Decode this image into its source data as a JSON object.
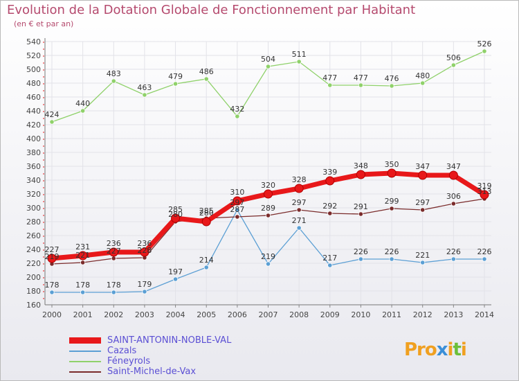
{
  "title": "Evolution de la Dotation Globale de Fonctionnement par Habitant",
  "subtitle": "(en € et par an)",
  "logo": {
    "parts": [
      "Pro",
      "x",
      "i",
      "t",
      "i"
    ]
  },
  "colors": {
    "title": "#b54a6e",
    "legend_text": "#5b4fd4",
    "axis_text": "#444444",
    "grid": "#e2e2e8"
  },
  "chart_data": {
    "type": "line",
    "title": "Evolution de la Dotation Globale de Fonctionnement par Habitant",
    "subtitle": "(en € et par an)",
    "xlabel": "",
    "ylabel": "",
    "x": [
      "2000",
      "2001",
      "2002",
      "2003",
      "2004",
      "2005",
      "2006",
      "2007",
      "2008",
      "2009",
      "2010",
      "2011",
      "2012",
      "2013",
      "2014"
    ],
    "ylim": [
      160,
      540
    ],
    "yticks": [
      160,
      180,
      200,
      220,
      240,
      260,
      280,
      300,
      320,
      340,
      360,
      380,
      400,
      420,
      440,
      460,
      480,
      500,
      520,
      540
    ],
    "grid": true,
    "legend_position": "bottom-left",
    "series": [
      {
        "name": "SAINT-ANTONIN-NOBLE-VAL",
        "color": "#e8181a",
        "width": 7,
        "values": [
          227,
          231,
          236,
          236,
          285,
          280,
          310,
          320,
          328,
          339,
          348,
          350,
          347,
          347,
          319
        ]
      },
      {
        "name": "Cazals",
        "color": "#5b9fd4",
        "width": 1.3,
        "values": [
          178,
          178,
          178,
          179,
          197,
          214,
          297,
          219,
          271,
          217,
          226,
          226,
          221,
          226,
          226
        ]
      },
      {
        "name": "Féneyrols",
        "color": "#8fd16a",
        "width": 1.3,
        "values": [
          424,
          440,
          483,
          463,
          479,
          486,
          432,
          504,
          511,
          477,
          477,
          476,
          480,
          506,
          526
        ]
      },
      {
        "name": "Saint-Michel-de-Vax",
        "color": "#7a2b2b",
        "width": 1.3,
        "values": [
          219,
          221,
          227,
          228,
          280,
          285,
          287,
          289,
          297,
          292,
          291,
          299,
          297,
          306,
          313
        ]
      }
    ]
  }
}
